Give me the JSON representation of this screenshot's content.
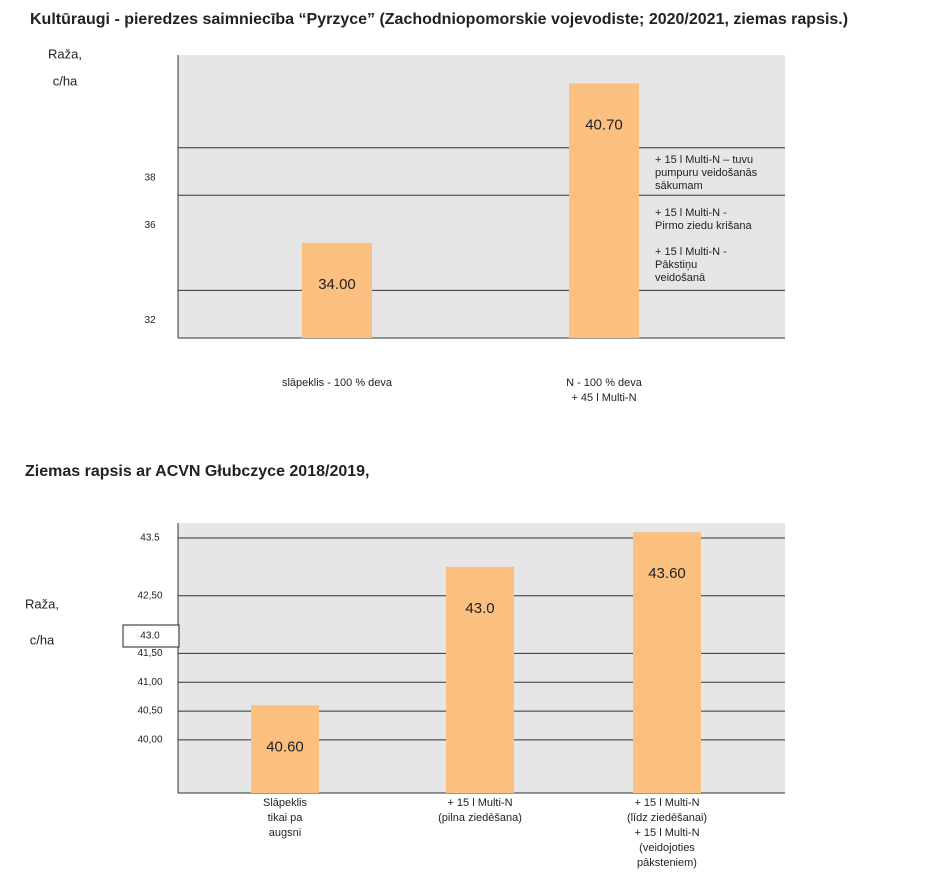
{
  "chart_data": [
    {
      "type": "bar",
      "title": "Kultūraugi - pieredzes saimniecība “Pyrzyce” (Zachodniopomorskie vojevodiste; 2020/2021, ziemas rapsis.)",
      "y_label": [
        "Raža,",
        "c/ha"
      ],
      "categories": [
        [
          "slāpeklis - 100 % deva"
        ],
        [
          "N - 100 % deva",
          "+ 45 l Multi-N"
        ]
      ],
      "values": [
        34,
        40.7
      ],
      "value_labels": [
        "34.00",
        "40.70"
      ],
      "color": "#fbbf80",
      "ylim": [
        30,
        41.9
      ],
      "yticks": [
        32,
        36,
        38
      ],
      "grid": true,
      "annotations": [
        [
          "+ 15 l Multi-N – tuvu",
          "pumpuru veidošanās",
          "sākumam"
        ],
        [
          "+ 15 l Multi-N -",
          "Pirmo ziedu krišana"
        ],
        [
          "+ 15 l Multi-N -",
          " Pākstiņu",
          "veidošanā"
        ]
      ]
    },
    {
      "type": "bar",
      "title": "Ziemas rapsis ar ACVN Głubczyce 2018/2019,",
      "y_label": [
        "Raža,",
        "c/ha"
      ],
      "categories": [
        [
          "Slāpeklis",
          "tikai pa",
          "augsni"
        ],
        [
          "+ 15 l Multi-N",
          "(pilna ziedēšana)"
        ],
        [
          "+ 15 l Multi-N",
          "(līdz ziedēšanai)",
          "+ 15 l Multi-N",
          "(veidojoties",
          "pāksteniem)"
        ]
      ],
      "values": [
        40.6,
        43,
        43.6
      ],
      "value_labels": [
        "40.60",
        "43.0",
        "43.60"
      ],
      "color": "#fbbf80",
      "ylim": [
        39.08,
        43.76
      ],
      "yticks": [
        43.5,
        {
          "value": 42.5,
          "label": "42,50"
        },
        {
          "value": 41.5,
          "label": "41,50"
        },
        {
          "value": 41,
          "label": "41,00"
        },
        {
          "value": 40.5,
          "label": "40,50"
        },
        {
          "value": 40,
          "label": "40,00"
        }
      ],
      "grid": true,
      "boxed_label": "43.0"
    }
  ]
}
